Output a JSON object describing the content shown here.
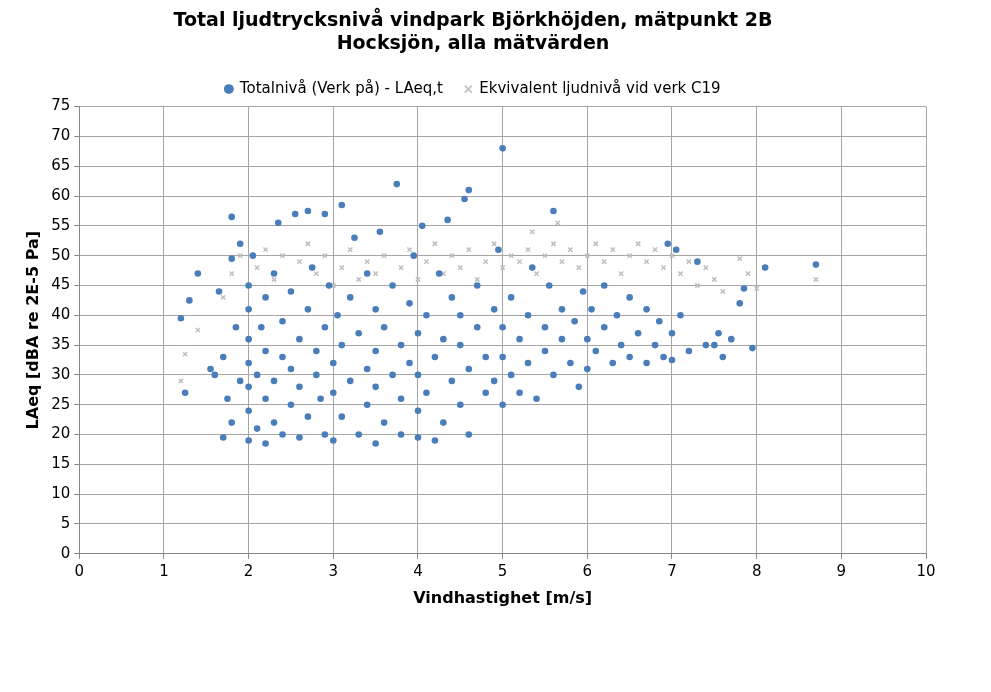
{
  "chart_data": {
    "type": "scatter",
    "title": [
      "Total ljudtrycksnivå vindpark Björkhöjden, mätpunkt 2B",
      "Hocksjön, alla mätvärden"
    ],
    "x_label": "Vindhastighet [m/s]",
    "y_label": "LAeq [dBA re 2E-5 Pa]",
    "xlim": [
      0,
      10
    ],
    "xticks": [
      0,
      1,
      2,
      3,
      4,
      5,
      6,
      7,
      8,
      9,
      10
    ],
    "ylim": [
      0,
      75
    ],
    "yticks": [
      0,
      5,
      10,
      15,
      20,
      25,
      30,
      35,
      40,
      45,
      50,
      55,
      60,
      65,
      70,
      75
    ],
    "grid": true,
    "legend": "top",
    "series": [
      {
        "name": "Ekvivalent ljudnivå vid verk C19",
        "color": "#bfbfbf",
        "marker": "x",
        "x": [
          1.2,
          1.25,
          1.4,
          1.6,
          1.7,
          1.8,
          1.9,
          2.0,
          2.1,
          2.2,
          2.3,
          2.4,
          2.5,
          2.6,
          2.7,
          2.8,
          2.9,
          3.0,
          3.1,
          3.2,
          3.3,
          3.4,
          3.5,
          3.6,
          3.7,
          3.8,
          3.9,
          4.0,
          4.1,
          4.2,
          4.3,
          4.4,
          4.5,
          4.6,
          4.7,
          4.8,
          4.9,
          5.0,
          5.1,
          5.2,
          5.3,
          5.35,
          5.4,
          5.5,
          5.6,
          5.65,
          5.7,
          5.8,
          5.9,
          6.0,
          6.1,
          6.2,
          6.3,
          6.4,
          6.5,
          6.6,
          6.7,
          6.8,
          6.9,
          7.0,
          7.1,
          7.2,
          7.3,
          7.4,
          7.5,
          7.6,
          7.8,
          7.9,
          8.0,
          8.7
        ],
        "values": [
          29,
          33.5,
          37.5,
          30,
          43,
          47,
          50,
          45,
          48,
          51,
          46,
          50,
          44,
          49,
          52,
          47,
          50,
          45,
          48,
          51,
          46,
          49,
          47,
          50,
          45,
          48,
          51,
          46,
          49,
          52,
          47,
          50,
          48,
          51,
          46,
          49,
          52,
          48,
          50,
          49,
          51,
          54,
          47,
          50,
          52,
          55.5,
          49,
          51,
          48,
          50,
          52,
          49,
          51,
          47,
          50,
          52,
          49,
          51,
          48,
          50,
          47,
          49,
          45,
          48,
          46,
          44,
          49.5,
          47,
          44.5,
          46
        ]
      },
      {
        "name": "Totalnivå (Verk på) - LAeq,t",
        "color": "#4a7ebb",
        "marker": "circle",
        "x": [
          1.2,
          1.25,
          1.3,
          1.4,
          1.55,
          1.6,
          1.65,
          1.7,
          1.7,
          1.75,
          1.8,
          1.8,
          1.8,
          1.85,
          1.9,
          1.9,
          2.0,
          2.0,
          2.0,
          2.0,
          2.0,
          2.0,
          2.0,
          2.05,
          2.1,
          2.1,
          2.15,
          2.2,
          2.2,
          2.2,
          2.2,
          2.3,
          2.3,
          2.3,
          2.35,
          2.4,
          2.4,
          2.4,
          2.5,
          2.5,
          2.5,
          2.55,
          2.6,
          2.6,
          2.6,
          2.7,
          2.7,
          2.7,
          2.75,
          2.8,
          2.8,
          2.85,
          2.9,
          2.9,
          2.9,
          2.95,
          3.0,
          3.0,
          3.0,
          3.05,
          3.1,
          3.1,
          3.1,
          3.2,
          3.2,
          3.25,
          3.3,
          3.3,
          3.4,
          3.4,
          3.4,
          3.5,
          3.5,
          3.5,
          3.5,
          3.55,
          3.6,
          3.6,
          3.7,
          3.7,
          3.75,
          3.8,
          3.8,
          3.8,
          3.9,
          3.9,
          3.95,
          4.0,
          4.0,
          4.0,
          4.0,
          4.05,
          4.1,
          4.1,
          4.2,
          4.2,
          4.25,
          4.3,
          4.3,
          4.35,
          4.4,
          4.4,
          4.5,
          4.5,
          4.5,
          4.55,
          4.6,
          4.6,
          4.6,
          4.7,
          4.7,
          4.8,
          4.8,
          4.9,
          4.9,
          4.95,
          5.0,
          5.0,
          5.0,
          5.0,
          5.1,
          5.1,
          5.2,
          5.2,
          5.3,
          5.3,
          5.35,
          5.4,
          5.5,
          5.5,
          5.55,
          5.6,
          5.6,
          5.7,
          5.7,
          5.8,
          5.85,
          5.9,
          5.95,
          6.0,
          6.0,
          6.05,
          6.1,
          6.2,
          6.2,
          6.3,
          6.35,
          6.4,
          6.5,
          6.5,
          6.6,
          6.7,
          6.7,
          6.8,
          6.85,
          6.9,
          6.95,
          7.0,
          7.0,
          7.05,
          7.1,
          7.2,
          7.3,
          7.4,
          7.5,
          7.55,
          7.6,
          7.7,
          7.8,
          7.85,
          7.95,
          8.1,
          8.7
        ],
        "values": [
          39.5,
          27,
          42.5,
          47,
          31,
          30,
          44,
          19.5,
          33,
          26,
          56.5,
          49.5,
          22,
          38,
          29,
          52,
          19,
          24,
          28,
          32,
          36,
          41,
          45,
          50,
          21,
          30,
          38,
          18.5,
          26,
          34,
          43,
          22,
          29,
          47,
          55.5,
          20,
          33,
          39,
          25,
          31,
          44,
          57,
          19.5,
          28,
          36,
          23,
          41,
          57.5,
          48,
          30,
          34,
          26,
          20,
          38,
          57,
          45,
          19,
          27,
          32,
          40,
          58.5,
          23,
          35,
          29,
          43,
          53,
          20,
          37,
          25,
          31,
          47,
          18.5,
          28,
          34,
          41,
          54,
          22,
          38,
          30,
          45,
          62,
          20,
          26,
          35,
          32,
          42,
          50,
          19.5,
          24,
          30,
          37,
          55,
          27,
          40,
          19,
          33,
          47,
          22,
          36,
          56,
          29,
          43,
          25,
          35,
          40,
          59.5,
          61,
          20,
          31,
          38,
          45,
          27,
          33,
          29,
          41,
          51,
          68,
          25,
          33,
          38,
          30,
          43,
          27,
          36,
          32,
          40,
          48,
          26,
          34,
          38,
          45,
          57.5,
          30,
          36,
          41,
          32,
          39,
          28,
          44,
          31,
          36,
          41,
          34,
          38,
          45,
          32,
          40,
          35,
          33,
          43,
          37,
          32,
          41,
          35,
          39,
          33,
          52,
          32.5,
          37,
          51,
          40,
          34,
          49,
          35,
          35,
          37,
          33,
          36,
          42,
          44.5,
          34.5,
          48,
          48.5
        ]
      }
    ]
  }
}
